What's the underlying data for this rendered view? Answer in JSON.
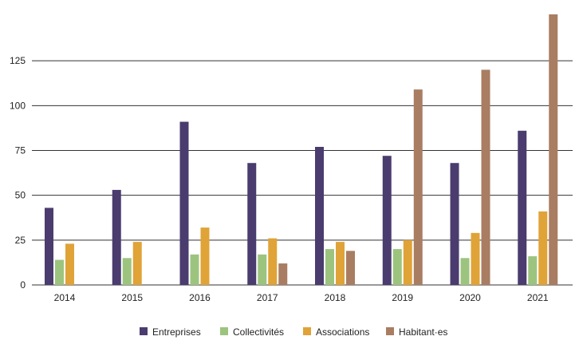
{
  "chart_data": {
    "type": "bar",
    "title": "",
    "xlabel": "",
    "ylabel": "",
    "categories": [
      "2014",
      "2015",
      "2016",
      "2017",
      "2018",
      "2019",
      "2020",
      "2021"
    ],
    "ylim": [
      0,
      150
    ],
    "yticks": [
      "0",
      "25",
      "50",
      "75",
      "100",
      "125"
    ],
    "grid": "horizontal",
    "legend_position": "bottom",
    "series": [
      {
        "name": "Entreprises",
        "color": "#4a3c6e",
        "values": [
          43,
          53,
          91,
          68,
          77,
          72,
          68,
          86
        ]
      },
      {
        "name": "Collectivités",
        "color": "#9cc47f",
        "values": [
          14,
          15,
          17,
          17,
          20,
          20,
          15,
          16
        ]
      },
      {
        "name": "Associations",
        "color": "#e0a338",
        "values": [
          23,
          24,
          32,
          26,
          24,
          25,
          29,
          41
        ]
      },
      {
        "name": "Habitant·es",
        "color": "#a97d62",
        "values": [
          null,
          null,
          null,
          12,
          19,
          109,
          120,
          151
        ]
      }
    ]
  }
}
